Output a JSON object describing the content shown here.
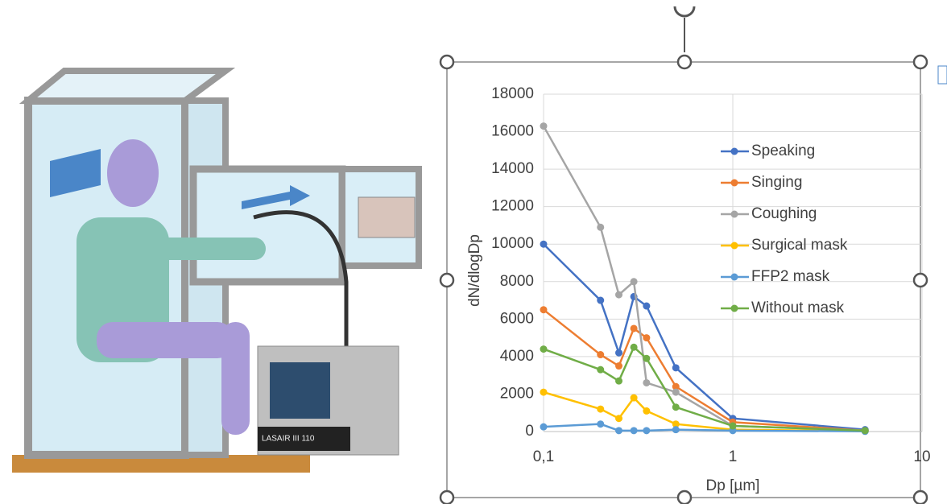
{
  "chart_data": {
    "type": "line",
    "x_label": "Dp [µm]",
    "y_label": "dN/dlogDp",
    "x": [
      0.1,
      0.2,
      0.25,
      0.3,
      0.35,
      0.5,
      1,
      5
    ],
    "xlim": [
      0.1,
      10
    ],
    "xticks": [
      {
        "value": 0.1,
        "label": "0,1"
      },
      1,
      10
    ],
    "x_log": true,
    "ylim": [
      0,
      18000
    ],
    "yticks": [
      0,
      2000,
      4000,
      6000,
      8000,
      10000,
      12000,
      14000,
      16000,
      18000
    ],
    "grid": true,
    "series": [
      {
        "name": "Speaking",
        "color": "#4472c4",
        "values": [
          10000,
          7000,
          4200,
          7200,
          6700,
          3400,
          700,
          100
        ]
      },
      {
        "name": "Singing",
        "color": "#ed7d31",
        "values": [
          6500,
          4100,
          3500,
          5500,
          5000,
          2400,
          500,
          50
        ]
      },
      {
        "name": "Coughing",
        "color": "#a5a5a5",
        "values": [
          16300,
          10900,
          7300,
          8000,
          2600,
          2100,
          300,
          50
        ]
      },
      {
        "name": "Surgical mask",
        "color": "#ffc000",
        "values": [
          2100,
          1200,
          700,
          1800,
          1100,
          400,
          100,
          20
        ]
      },
      {
        "name": "FFP2 mask",
        "color": "#5b9bd5",
        "values": [
          250,
          400,
          50,
          50,
          50,
          100,
          50,
          10
        ]
      },
      {
        "name": "Without mask",
        "color": "#70ad47",
        "values": [
          4400,
          3300,
          2700,
          4500,
          3900,
          1300,
          300,
          50
        ]
      }
    ]
  },
  "illustration": {
    "device_label": "LASAIR III 110"
  }
}
